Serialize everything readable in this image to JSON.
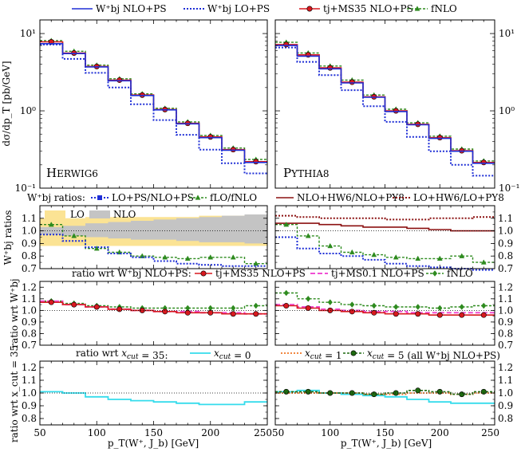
{
  "colors": {
    "nlo_ps": "#1f2fd6",
    "lo_ps": "#1f2fd6",
    "tj": "#d8191f",
    "fnlo": "#2e8b1f",
    "tj01": "#f04fd4",
    "ratio_nlo_hw_py": "#8b1010",
    "ratio_lo_hw_py": "#8b1010",
    "xcut0": "#35dcec",
    "xcut1": "#f07828",
    "xcut5": "#1f6a10",
    "band_lo": "#fbe394",
    "band_nlo": "#c4c4c4"
  },
  "top_legend": [
    {
      "key": "nlo_ps",
      "label": "W⁺bj NLO+PS"
    },
    {
      "key": "lo_ps",
      "label": "W⁺bj LO+PS"
    },
    {
      "key": "tj",
      "label": "tj+MS35 NLO+PS"
    },
    {
      "key": "fnlo",
      "label": "fNLO"
    }
  ],
  "ratio_legend": {
    "title": "W⁺bj ratios:",
    "items": [
      {
        "key": "lo_ps",
        "label": "LO+PS/NLO+PS"
      },
      {
        "key": "fnlo",
        "label": "fLO/fNLO"
      },
      {
        "key": "ratio_nlo_hw_py",
        "label": "NLO+HW6/NLO+PY8"
      },
      {
        "key": "ratio_lo_hw_py",
        "label": "LO+HW6/LO+PY8"
      }
    ]
  },
  "wrt_legend": {
    "title": "ratio wrt W⁺bj NLO+PS:",
    "items": [
      {
        "key": "tj",
        "label": "tj+MS35 NLO+PS"
      },
      {
        "key": "tj01",
        "label": "tj+MS0.1 NLO+PS"
      },
      {
        "key": "fnlo",
        "label": "fNLO"
      }
    ]
  },
  "xcut_legend": {
    "title": "ratio wrt x_cut = 35:",
    "items": [
      {
        "key": "xcut0",
        "label": "x_cut = 0"
      },
      {
        "key": "xcut1",
        "label": "x_cut = 1"
      },
      {
        "key": "xcut5",
        "label": "x_cut = 5 (all W⁺bj NLO+PS)"
      }
    ]
  },
  "band_legend": {
    "lo": "LO",
    "nlo": "NLO"
  },
  "generators": {
    "left": "Herwig6",
    "right": "Pythia8"
  },
  "axis_labels": {
    "main_y": "dσ/dp_T [pb/GeV]",
    "ratio_y": "W⁺bj ratios",
    "wrt_y": "ratio wrt W⁺bj",
    "xcut_y": "ratio wrt x_cut = 35",
    "x": "p_T(W⁺, J_b) [GeV]"
  },
  "chart_data": {
    "type": "line",
    "bin_edges": [
      50,
      70,
      90,
      110,
      130,
      150,
      170,
      190,
      210,
      230,
      250
    ],
    "xlim": [
      50,
      250
    ],
    "x_ticks": [
      "50",
      "100",
      "150",
      "200",
      "250"
    ],
    "main": {
      "yscale": "log",
      "ylim": [
        0.1,
        15
      ],
      "y_ticks": [
        "10⁻¹",
        "10⁰",
        "10¹"
      ],
      "left": {
        "nlo_ps": [
          7.4,
          5.5,
          3.7,
          2.45,
          1.58,
          1.03,
          0.68,
          0.45,
          0.31,
          0.215
        ],
        "lo_ps": [
          7.2,
          4.7,
          3.1,
          2.0,
          1.22,
          0.76,
          0.49,
          0.315,
          0.21,
          0.155
        ],
        "tj": [
          7.8,
          5.6,
          3.75,
          2.5,
          1.6,
          1.04,
          0.69,
          0.46,
          0.315,
          0.22
        ],
        "fnlo": [
          8.1,
          5.9,
          3.9,
          2.6,
          1.66,
          1.08,
          0.72,
          0.48,
          0.33,
          0.235
        ]
      },
      "right": {
        "nlo_ps": [
          7.0,
          5.1,
          3.5,
          2.3,
          1.5,
          0.98,
          0.66,
          0.44,
          0.3,
          0.21
        ],
        "lo_ps": [
          6.6,
          4.3,
          2.9,
          1.85,
          1.15,
          0.72,
          0.46,
          0.3,
          0.2,
          0.145
        ],
        "tj": [
          7.2,
          5.3,
          3.6,
          2.35,
          1.52,
          1.0,
          0.67,
          0.45,
          0.305,
          0.215
        ],
        "fnlo": [
          7.7,
          5.6,
          3.8,
          2.5,
          1.6,
          1.05,
          0.7,
          0.47,
          0.32,
          0.225
        ]
      }
    },
    "ratios": {
      "ylim": [
        0.7,
        1.2
      ],
      "y_ticks": [
        "0.7",
        "0.8",
        "0.9",
        "1.0",
        "1.1"
      ],
      "left": {
        "band_lo_upper": [
          1.1,
          1.1,
          1.11,
          1.11,
          1.11,
          1.11,
          1.11,
          1.12,
          1.12,
          1.12
        ],
        "band_lo_lower": [
          0.88,
          0.88,
          0.88,
          0.88,
          0.88,
          0.88,
          0.88,
          0.88,
          0.88,
          0.88
        ],
        "band_nlo_upper": [
          1.03,
          1.04,
          1.06,
          1.07,
          1.08,
          1.09,
          1.1,
          1.11,
          1.12,
          1.13
        ],
        "band_nlo_lower": [
          0.97,
          0.96,
          0.95,
          0.94,
          0.93,
          0.93,
          0.92,
          0.91,
          0.91,
          0.9
        ],
        "lo_ps": [
          0.97,
          0.92,
          0.87,
          0.82,
          0.79,
          0.76,
          0.74,
          0.73,
          0.72,
          0.72
        ],
        "fnlo": [
          1.05,
          0.96,
          0.86,
          0.83,
          0.8,
          0.79,
          0.78,
          0.79,
          0.79,
          0.74
        ]
      },
      "right": {
        "lo_ps": [
          0.95,
          0.86,
          0.82,
          0.8,
          0.77,
          0.74,
          0.72,
          0.71,
          0.7,
          0.69
        ],
        "fnlo": [
          1.05,
          0.96,
          0.88,
          0.83,
          0.81,
          0.79,
          0.78,
          0.78,
          0.8,
          0.75
        ],
        "ratio_nlo_hw_py": [
          1.06,
          1.06,
          1.05,
          1.04,
          1.03,
          1.03,
          1.02,
          1.01,
          1.0,
          1.0
        ],
        "ratio_lo_hw_py": [
          1.12,
          1.11,
          1.1,
          1.1,
          1.1,
          1.09,
          1.09,
          1.1,
          1.1,
          1.11
        ]
      }
    },
    "wrt": {
      "ylim": [
        0.7,
        1.25
      ],
      "y_ticks": [
        "0.7",
        "0.8",
        "0.9",
        "1.0",
        "1.1",
        "1.2"
      ],
      "left": {
        "tj": [
          1.07,
          1.05,
          1.03,
          1.01,
          1.0,
          0.99,
          0.98,
          0.98,
          0.97,
          0.97
        ],
        "tj01": [
          1.08,
          1.05,
          1.03,
          1.01,
          1.0,
          0.99,
          0.99,
          0.98,
          0.98,
          0.97
        ],
        "fnlo": [
          1.08,
          1.06,
          1.04,
          1.03,
          1.02,
          1.02,
          1.02,
          1.02,
          1.02,
          1.04
        ]
      },
      "right": {
        "tj": [
          1.04,
          1.02,
          1.0,
          0.99,
          0.98,
          0.97,
          0.97,
          0.96,
          0.96,
          0.96
        ],
        "tj01": [
          1.05,
          1.03,
          1.01,
          1.0,
          0.99,
          0.99,
          0.98,
          0.98,
          0.98,
          0.98
        ],
        "fnlo": [
          1.15,
          1.1,
          1.07,
          1.05,
          1.04,
          1.03,
          1.03,
          1.02,
          1.03,
          1.04
        ]
      }
    },
    "xcut": {
      "ylim": [
        0.75,
        1.25
      ],
      "y_ticks": [
        "0.8",
        "0.9",
        "1.0",
        "1.1",
        "1.2"
      ],
      "left": {
        "xcut0": [
          1.01,
          1.0,
          0.97,
          0.95,
          0.94,
          0.93,
          0.92,
          0.91,
          0.91,
          0.93
        ]
      },
      "right": {
        "xcut0": [
          1.01,
          1.02,
          1.0,
          0.99,
          0.98,
          0.97,
          0.95,
          0.93,
          0.92,
          0.92
        ],
        "xcut1": [
          1.0,
          1.0,
          1.0,
          1.0,
          0.99,
          0.99,
          1.0,
          1.0,
          0.99,
          1.0
        ],
        "xcut5": [
          1.01,
          1.01,
          1.0,
          1.0,
          0.99,
          1.0,
          1.02,
          1.01,
          0.99,
          1.01
        ]
      }
    }
  }
}
